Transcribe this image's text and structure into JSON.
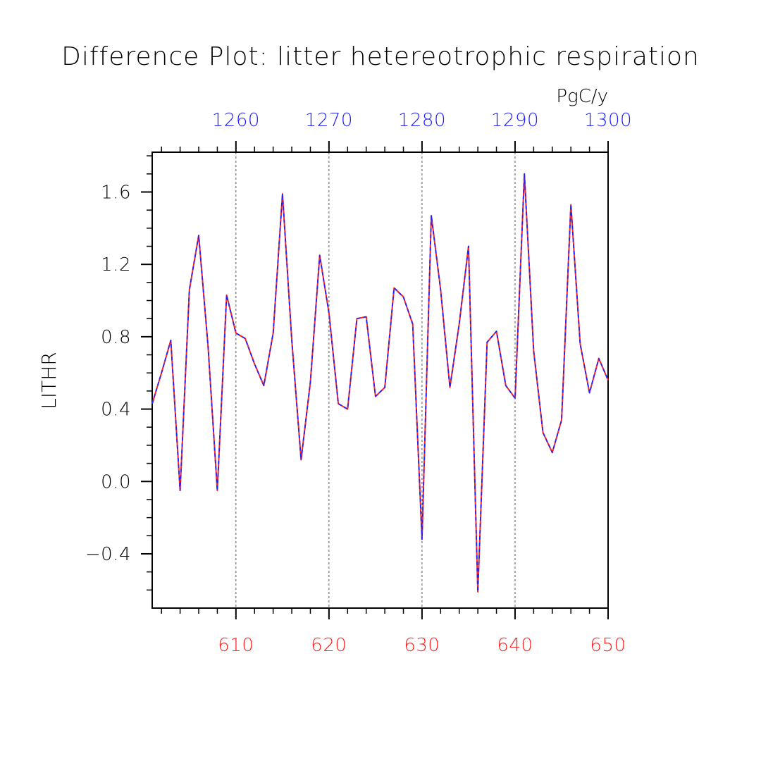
{
  "chart_data": {
    "type": "line",
    "title": "Difference Plot: litter hetereotrophic respiration",
    "ylabel": "LITHR",
    "units": "PgC/y",
    "grid": "vertical-dashed",
    "xlim": [
      601,
      650
    ],
    "ylim": [
      -0.7,
      1.82
    ],
    "bottom_axis": {
      "color": "#ff2222",
      "ticks": [
        610,
        620,
        630,
        640,
        650
      ],
      "tick_labels": [
        "610",
        "620",
        "630",
        "640",
        "650"
      ]
    },
    "top_axis": {
      "color": "#2222ff",
      "ticks": [
        1260,
        1270,
        1280,
        1290,
        1300
      ],
      "tick_labels": [
        "1260",
        "1270",
        "1280",
        "1290",
        "1300"
      ],
      "offset": 650
    },
    "y_ticks": [
      -0.4,
      0.0,
      0.4,
      0.8,
      1.2,
      1.6
    ],
    "y_tick_labels": [
      "−0.4",
      "0.0",
      "0.4",
      "0.8",
      "1.2",
      "1.6"
    ],
    "series": [
      {
        "color": "#ff2222",
        "style": "solid",
        "x": [
          601,
          602,
          603,
          604,
          605,
          606,
          607,
          608,
          609,
          610,
          611,
          612,
          613,
          614,
          615,
          616,
          617,
          618,
          619,
          620,
          621,
          622,
          623,
          624,
          625,
          626,
          627,
          628,
          629,
          630,
          631,
          632,
          633,
          634,
          635,
          636,
          637,
          638,
          639,
          640,
          641,
          642,
          643,
          644,
          645,
          646,
          647,
          648,
          649,
          650
        ],
        "values": [
          0.43,
          0.6,
          0.78,
          -0.05,
          1.06,
          1.36,
          0.75,
          -0.05,
          1.03,
          0.82,
          0.79,
          0.65,
          0.53,
          0.82,
          1.59,
          0.78,
          0.12,
          0.55,
          1.25,
          0.93,
          0.43,
          0.4,
          0.9,
          0.91,
          0.47,
          0.52,
          1.07,
          1.02,
          0.87,
          -0.32,
          1.47,
          1.06,
          0.52,
          0.87,
          1.3,
          -0.61,
          0.77,
          0.83,
          0.53,
          0.46,
          1.7,
          0.72,
          0.27,
          0.16,
          0.34,
          1.53,
          0.76,
          0.49,
          0.68,
          0.56
        ]
      },
      {
        "color": "#2222ff",
        "style": "dashed",
        "x": [
          601,
          602,
          603,
          604,
          605,
          606,
          607,
          608,
          609,
          610,
          611,
          612,
          613,
          614,
          615,
          616,
          617,
          618,
          619,
          620,
          621,
          622,
          623,
          624,
          625,
          626,
          627,
          628,
          629,
          630,
          631,
          632,
          633,
          634,
          635,
          636,
          637,
          638,
          639,
          640,
          641,
          642,
          643,
          644,
          645,
          646,
          647,
          648,
          649,
          650
        ],
        "values": [
          0.43,
          0.6,
          0.78,
          -0.05,
          1.06,
          1.36,
          0.75,
          -0.05,
          1.03,
          0.82,
          0.79,
          0.65,
          0.53,
          0.82,
          1.59,
          0.78,
          0.12,
          0.55,
          1.25,
          0.93,
          0.43,
          0.4,
          0.9,
          0.91,
          0.47,
          0.52,
          1.07,
          1.02,
          0.87,
          -0.32,
          1.47,
          1.06,
          0.52,
          0.87,
          1.3,
          -0.61,
          0.77,
          0.83,
          0.53,
          0.46,
          1.7,
          0.72,
          0.27,
          0.16,
          0.34,
          1.53,
          0.76,
          0.49,
          0.68,
          0.56
        ]
      }
    ]
  }
}
